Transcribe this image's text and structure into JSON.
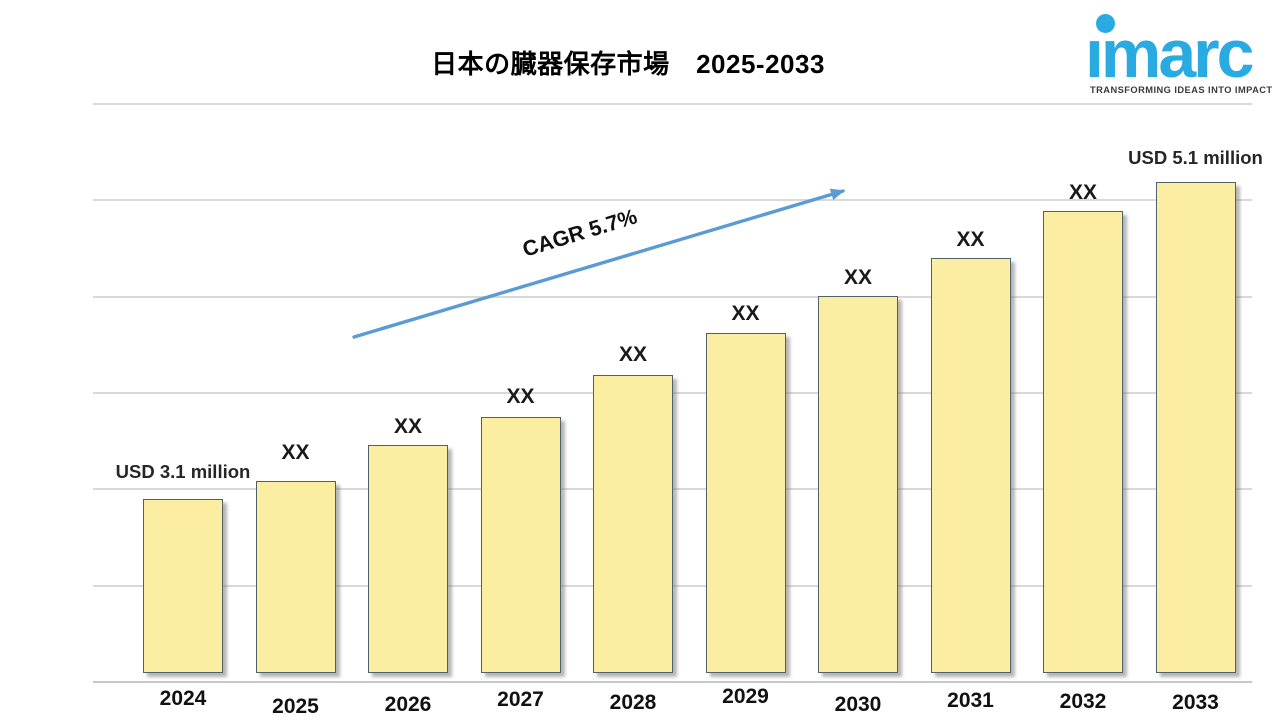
{
  "page": {
    "background": "#ffffff"
  },
  "logo": {
    "brand": "imarc",
    "wordmark": "ımarc",
    "tagline": "TRANSFORMING IDEAS INTO IMPACT",
    "color": "#29abe2",
    "tagline_color": "#3a3a3a"
  },
  "chart_data": {
    "type": "bar",
    "title": "日本の臓器保存市場　2025-2033",
    "unit": "USD million",
    "categories": [
      "2024",
      "2025",
      "2026",
      "2027",
      "2028",
      "2029",
      "2030",
      "2031",
      "2032",
      "2033"
    ],
    "values": [
      3.1,
      3.21,
      3.44,
      3.62,
      3.88,
      4.15,
      4.38,
      4.62,
      4.92,
      5.1
    ],
    "bar_labels": [
      "USD 3.1 million",
      "XX",
      "XX",
      "XX",
      "XX",
      "XX",
      "XX",
      "XX",
      "XX",
      "USD 5.1 million"
    ],
    "values_are_estimates": true,
    "ylim": [
      2.0,
      5.6
    ],
    "gridline_step": 0.6,
    "grid": true,
    "legend": false,
    "xlabel": "",
    "ylabel": "",
    "annotation": {
      "text": "CAGR 5.7%",
      "arrow_color": "#5b9bd5"
    },
    "bar_fill": "#fbeea2",
    "bar_border": "#4e616d",
    "gridline_color": "#d9d9d9"
  }
}
